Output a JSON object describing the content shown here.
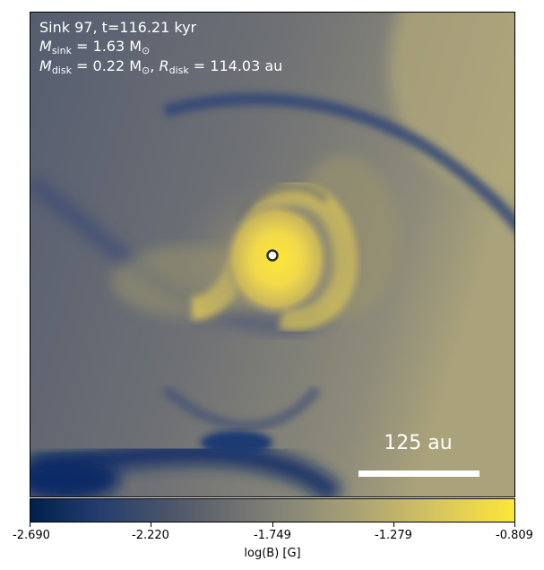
{
  "overlay": {
    "line1": "Sink 97, t=116.21 kyr",
    "msink_label": "M",
    "msink_sub": "sink",
    "msink_value": " = 1.63 M",
    "msink_unit_sub": "⊙",
    "mdisk_label": "M",
    "mdisk_sub": "disk",
    "mdisk_value": " = 0.22 M",
    "mdisk_unit_sub": "⊙",
    "mdisk_sep": ", ",
    "rdisk_label": "R",
    "rdisk_sub": "disk",
    "rdisk_value": " = 114.03 au"
  },
  "scale_bar": {
    "label": "125 au"
  },
  "colorbar": {
    "title": "log(B) [G]",
    "ticks": [
      "-2.690",
      "-2.220",
      "-1.749",
      "-1.279",
      "-0.809"
    ],
    "colors": [
      "#00204c",
      "#6e7071",
      "#fde737"
    ]
  },
  "sink_marker": {
    "name": "sink-particle"
  }
}
